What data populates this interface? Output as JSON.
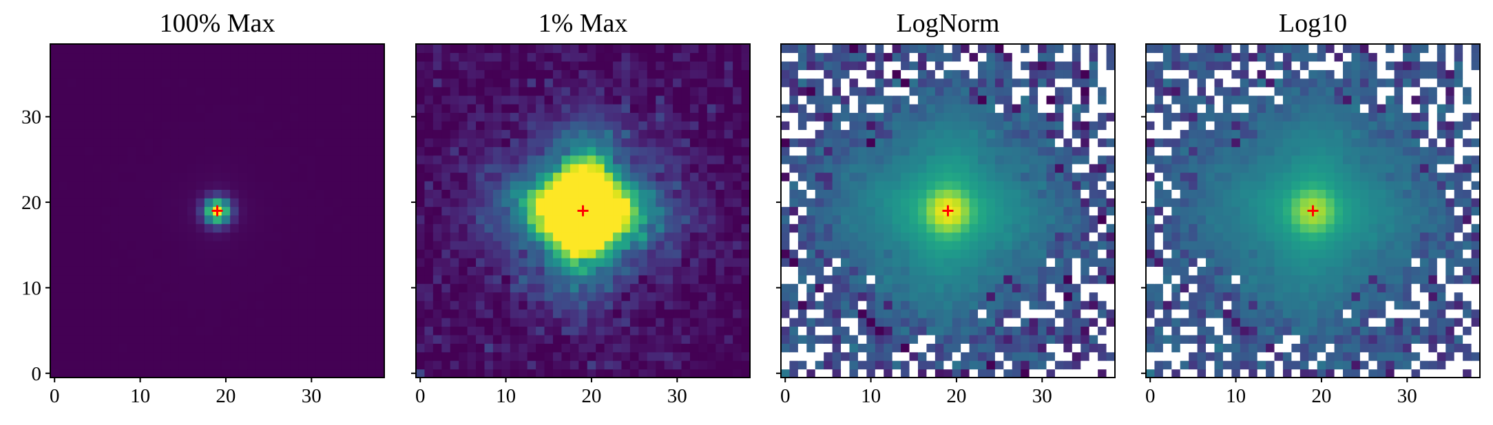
{
  "chart_data": {
    "type": "heatmap",
    "source_shape": [
      39,
      39
    ],
    "peak": {
      "x": 19,
      "y": 19
    },
    "marker": {
      "x": 19,
      "y": 19,
      "symbol": "+",
      "color": "#ff0000"
    },
    "xlim": [
      -0.5,
      38.5
    ],
    "ylim": [
      -0.5,
      38.5
    ],
    "colormap": "viridis",
    "nan_color": "#ffffff",
    "y_tick_labels_shown_on": "first panel only",
    "panels": [
      {
        "title": "100% Max",
        "scale": "linear",
        "vmax_fraction": 1.0,
        "xticks": [
          0,
          10,
          20,
          30
        ],
        "yticks": [
          0,
          10,
          20,
          30
        ]
      },
      {
        "title": "1% Max",
        "scale": "linear",
        "vmax_fraction": 0.01,
        "xticks": [
          0,
          10,
          20,
          30
        ],
        "yticks": [
          0,
          10,
          20,
          30
        ]
      },
      {
        "title": "LogNorm",
        "scale": "log",
        "masked_nonpositive": true,
        "xticks": [
          0,
          10,
          20,
          30
        ],
        "yticks": [
          0,
          10,
          20,
          30
        ]
      },
      {
        "title": "Log10",
        "scale": "log10",
        "masked_nonpositive": true,
        "xticks": [
          0,
          10,
          20,
          30
        ],
        "yticks": [
          0,
          10,
          20,
          30
        ]
      }
    ]
  }
}
